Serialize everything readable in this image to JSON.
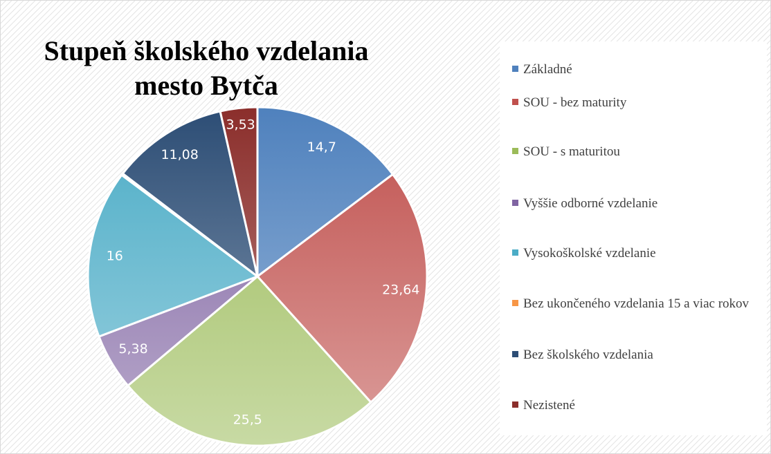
{
  "chart_data": {
    "type": "pie",
    "title": [
      "Stupeň školského vzdelania",
      "mesto Bytča"
    ],
    "categories": [
      "Základné",
      "SOU  - bez maturity",
      "SOU - s maturitou",
      "Vyššie odborné vzdelanie",
      "Vysokoškolské vzdelanie",
      "Bez ukončeného vzdelania 15 a viac rokov",
      "Bez školského vzdelania",
      "Nezistené"
    ],
    "values": [
      14.7,
      23.64,
      25.5,
      5.38,
      16,
      0.17,
      11.08,
      3.53
    ],
    "value_labels": [
      "14,7",
      "23,64",
      "25,5",
      "5,38",
      "16",
      null,
      "11,08",
      "3,53"
    ],
    "colors": [
      "#4f81bd",
      "#c0504d",
      "#9bbb59",
      "#8064a2",
      "#4bacc6",
      "#f79646",
      "#2c4d75",
      "#8b2e2b"
    ],
    "legend": "right"
  }
}
